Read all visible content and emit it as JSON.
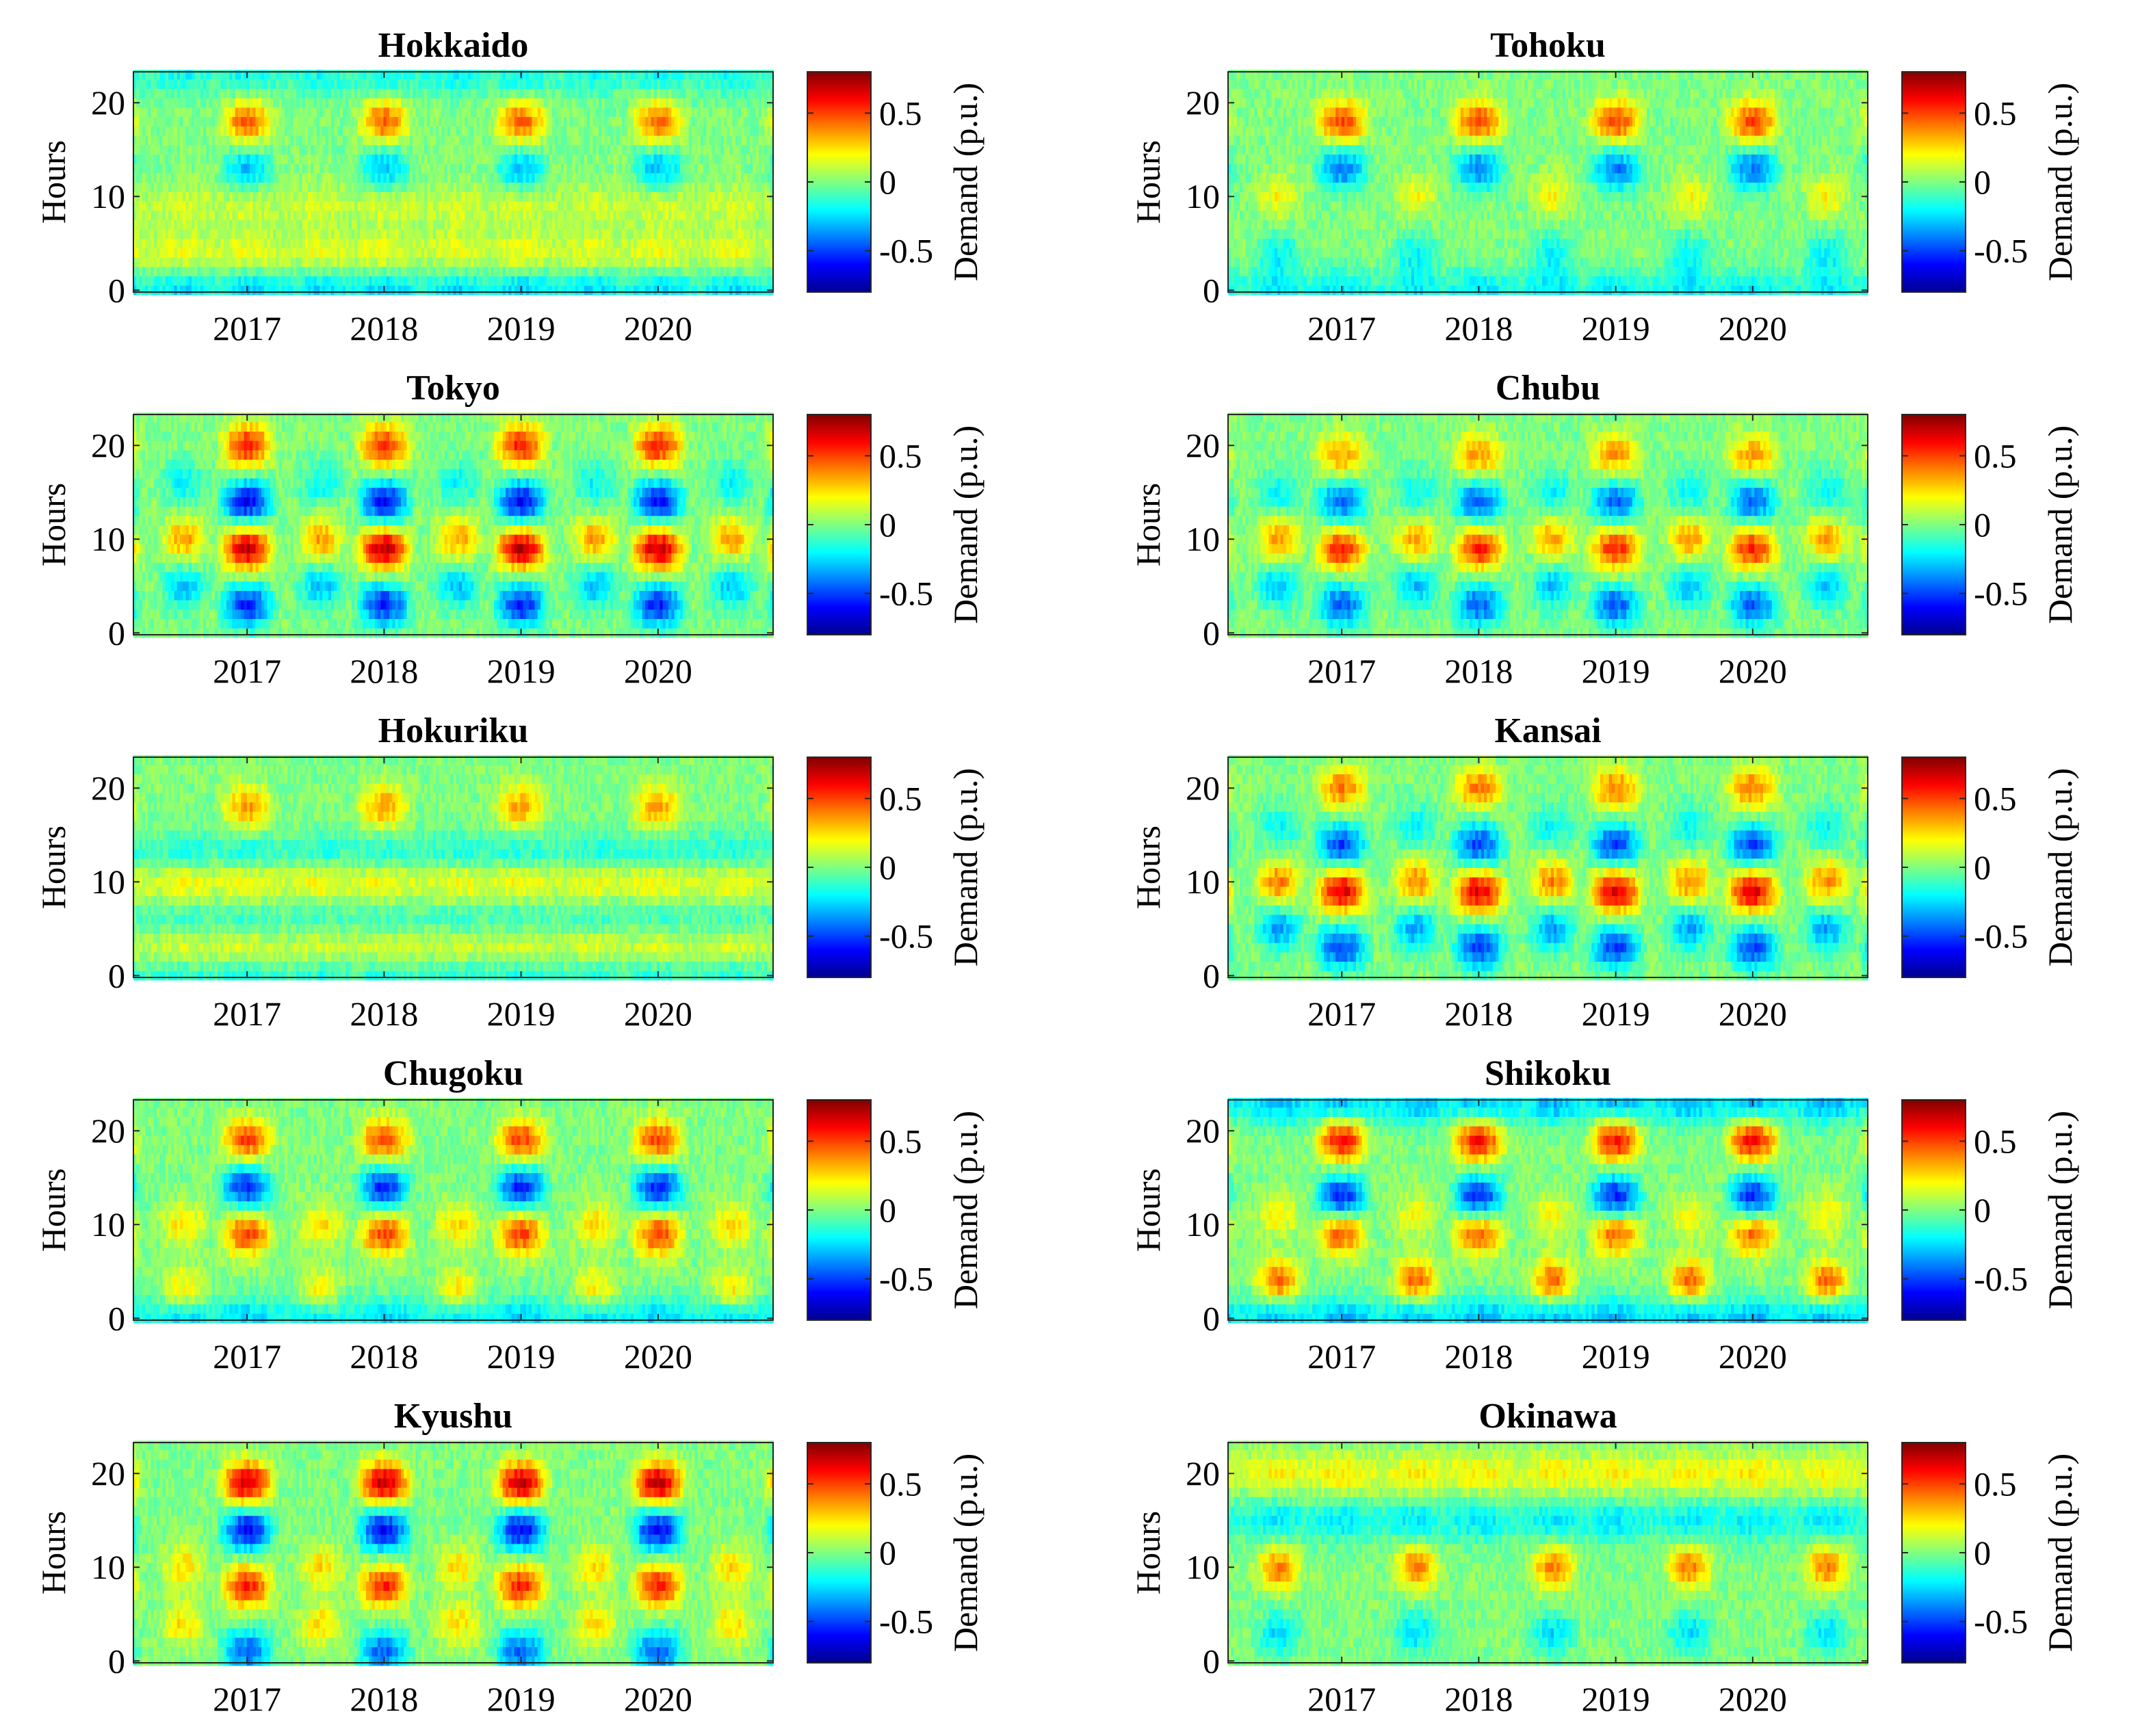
{
  "chart_data": [
    {
      "type": "heatmap",
      "title": "Hokkaido",
      "ylabel": "Hours",
      "xlabel": "",
      "ylim": [
        0,
        23
      ],
      "x_ticks": [
        "2017",
        "2018",
        "2019",
        "2020"
      ],
      "y_ticks": [
        "0",
        "10",
        "20"
      ],
      "x_range": [
        "2016-04",
        "2020-11"
      ],
      "colorbar": {
        "label": "Demand (p.u.)",
        "ticks": [
          "-0.5",
          "0",
          "0.5"
        ],
        "range": [
          -0.8,
          0.8
        ],
        "colormap": "jet"
      },
      "bands": [
        {
          "hour": 18,
          "amplitude": 0.45,
          "season": "winter"
        },
        {
          "hour": 13,
          "amplitude": -0.3,
          "season": "winter"
        },
        {
          "hour": 9,
          "amplitude": 0.15,
          "season": "all"
        },
        {
          "hour": 4,
          "amplitude": 0.2,
          "season": "all"
        },
        {
          "hour": 0,
          "amplitude": -0.3,
          "season": "all"
        },
        {
          "hour": 23,
          "amplitude": -0.2,
          "season": "all"
        }
      ]
    },
    {
      "type": "heatmap",
      "title": "Tohoku",
      "ylabel": "Hours",
      "xlabel": "",
      "ylim": [
        0,
        23
      ],
      "x_ticks": [
        "2017",
        "2018",
        "2019",
        "2020"
      ],
      "y_ticks": [
        "0",
        "10",
        "20"
      ],
      "x_range": [
        "2016-04",
        "2020-11"
      ],
      "colorbar": {
        "label": "Demand (p.u.)",
        "ticks": [
          "-0.5",
          "0",
          "0.5"
        ],
        "range": [
          -0.8,
          0.8
        ],
        "colormap": "jet"
      },
      "bands": [
        {
          "hour": 18,
          "amplitude": 0.5,
          "season": "winter"
        },
        {
          "hour": 13,
          "amplitude": -0.4,
          "season": "winter"
        },
        {
          "hour": 10,
          "amplitude": 0.2,
          "season": "summer"
        },
        {
          "hour": 4,
          "amplitude": -0.2,
          "season": "summer"
        },
        {
          "hour": 0,
          "amplitude": -0.25,
          "season": "all"
        }
      ]
    },
    {
      "type": "heatmap",
      "title": "Tokyo",
      "ylabel": "Hours",
      "xlabel": "",
      "ylim": [
        0,
        23
      ],
      "x_ticks": [
        "2017",
        "2018",
        "2019",
        "2020"
      ],
      "y_ticks": [
        "0",
        "10",
        "20"
      ],
      "x_range": [
        "2016-04",
        "2020-11"
      ],
      "colorbar": {
        "label": "Demand (p.u.)",
        "ticks": [
          "-0.5",
          "0",
          "0.5"
        ],
        "range": [
          -0.8,
          0.8
        ],
        "colormap": "jet"
      },
      "bands": [
        {
          "hour": 20,
          "amplitude": 0.55,
          "season": "winter"
        },
        {
          "hour": 14,
          "amplitude": -0.6,
          "season": "winter"
        },
        {
          "hour": 9,
          "amplitude": 0.7,
          "season": "winter"
        },
        {
          "hour": 10,
          "amplitude": 0.35,
          "season": "summer"
        },
        {
          "hour": 3,
          "amplitude": -0.55,
          "season": "winter"
        },
        {
          "hour": 5,
          "amplitude": -0.3,
          "season": "summer"
        },
        {
          "hour": 16,
          "amplitude": -0.2,
          "season": "summer"
        }
      ]
    },
    {
      "type": "heatmap",
      "title": "Chubu",
      "ylabel": "Hours",
      "xlabel": "",
      "ylim": [
        0,
        23
      ],
      "x_ticks": [
        "2017",
        "2018",
        "2019",
        "2020"
      ],
      "y_ticks": [
        "0",
        "10",
        "20"
      ],
      "x_range": [
        "2016-04",
        "2020-11"
      ],
      "colorbar": {
        "label": "Demand (p.u.)",
        "ticks": [
          "-0.5",
          "0",
          "0.5"
        ],
        "range": [
          -0.8,
          0.8
        ],
        "colormap": "jet"
      },
      "bands": [
        {
          "hour": 19,
          "amplitude": 0.35,
          "season": "winter"
        },
        {
          "hour": 14,
          "amplitude": -0.45,
          "season": "winter"
        },
        {
          "hour": 9,
          "amplitude": 0.55,
          "season": "winter"
        },
        {
          "hour": 10,
          "amplitude": 0.35,
          "season": "summer"
        },
        {
          "hour": 3,
          "amplitude": -0.45,
          "season": "winter"
        },
        {
          "hour": 5,
          "amplitude": -0.3,
          "season": "summer"
        },
        {
          "hour": 15,
          "amplitude": -0.2,
          "season": "summer"
        }
      ]
    },
    {
      "type": "heatmap",
      "title": "Hokuriku",
      "ylabel": "Hours",
      "xlabel": "",
      "ylim": [
        0,
        23
      ],
      "x_ticks": [
        "2017",
        "2018",
        "2019",
        "2020"
      ],
      "y_ticks": [
        "0",
        "10",
        "20"
      ],
      "x_range": [
        "2016-04",
        "2020-11"
      ],
      "colorbar": {
        "label": "Demand (p.u.)",
        "ticks": [
          "-0.5",
          "0",
          "0.5"
        ],
        "range": [
          -0.8,
          0.8
        ],
        "colormap": "jet"
      },
      "bands": [
        {
          "hour": 18,
          "amplitude": 0.35,
          "season": "winter"
        },
        {
          "hour": 13,
          "amplitude": -0.2,
          "season": "all"
        },
        {
          "hour": 10,
          "amplitude": 0.25,
          "season": "all"
        },
        {
          "hour": 3,
          "amplitude": 0.2,
          "season": "all"
        },
        {
          "hour": 6,
          "amplitude": -0.15,
          "season": "all"
        },
        {
          "hour": 0,
          "amplitude": -0.2,
          "season": "all"
        }
      ]
    },
    {
      "type": "heatmap",
      "title": "Kansai",
      "ylabel": "Hours",
      "xlabel": "",
      "ylim": [
        0,
        23
      ],
      "x_ticks": [
        "2017",
        "2018",
        "2019",
        "2020"
      ],
      "y_ticks": [
        "0",
        "10",
        "20"
      ],
      "x_range": [
        "2016-04",
        "2020-11"
      ],
      "colorbar": {
        "label": "Demand (p.u.)",
        "ticks": [
          "-0.5",
          "0",
          "0.5"
        ],
        "range": [
          -0.8,
          0.8
        ],
        "colormap": "jet"
      },
      "bands": [
        {
          "hour": 20,
          "amplitude": 0.4,
          "season": "winter"
        },
        {
          "hour": 14,
          "amplitude": -0.5,
          "season": "winter"
        },
        {
          "hour": 9,
          "amplitude": 0.65,
          "season": "winter"
        },
        {
          "hour": 10,
          "amplitude": 0.4,
          "season": "summer"
        },
        {
          "hour": 3,
          "amplitude": -0.5,
          "season": "winter"
        },
        {
          "hour": 5,
          "amplitude": -0.35,
          "season": "summer"
        },
        {
          "hour": 16,
          "amplitude": -0.2,
          "season": "summer"
        }
      ]
    },
    {
      "type": "heatmap",
      "title": "Chugoku",
      "ylabel": "Hours",
      "xlabel": "",
      "ylim": [
        0,
        23
      ],
      "x_ticks": [
        "2017",
        "2018",
        "2019",
        "2020"
      ],
      "y_ticks": [
        "0",
        "10",
        "20"
      ],
      "x_range": [
        "2016-04",
        "2020-11"
      ],
      "colorbar": {
        "label": "Demand (p.u.)",
        "ticks": [
          "-0.5",
          "0",
          "0.5"
        ],
        "range": [
          -0.8,
          0.8
        ],
        "colormap": "jet"
      },
      "bands": [
        {
          "hour": 19,
          "amplitude": 0.5,
          "season": "winter"
        },
        {
          "hour": 14,
          "amplitude": -0.55,
          "season": "winter"
        },
        {
          "hour": 9,
          "amplitude": 0.5,
          "season": "winter"
        },
        {
          "hour": 10,
          "amplitude": 0.25,
          "season": "summer"
        },
        {
          "hour": 3,
          "amplitude": 0.25,
          "season": "summer"
        },
        {
          "hour": 0,
          "amplitude": -0.3,
          "season": "all"
        }
      ]
    },
    {
      "type": "heatmap",
      "title": "Shikoku",
      "ylabel": "Hours",
      "xlabel": "",
      "ylim": [
        0,
        23
      ],
      "x_ticks": [
        "2017",
        "2018",
        "2019",
        "2020"
      ],
      "y_ticks": [
        "0",
        "10",
        "20"
      ],
      "x_range": [
        "2016-04",
        "2020-11"
      ],
      "colorbar": {
        "label": "Demand (p.u.)",
        "ticks": [
          "-0.5",
          "0",
          "0.5"
        ],
        "range": [
          -0.8,
          0.8
        ],
        "colormap": "jet"
      },
      "bands": [
        {
          "hour": 19,
          "amplitude": 0.6,
          "season": "winter"
        },
        {
          "hour": 13,
          "amplitude": -0.55,
          "season": "winter"
        },
        {
          "hour": 9,
          "amplitude": 0.45,
          "season": "winter"
        },
        {
          "hour": 11,
          "amplitude": 0.2,
          "season": "summer"
        },
        {
          "hour": 4,
          "amplitude": 0.45,
          "season": "summer"
        },
        {
          "hour": 23,
          "amplitude": -0.35,
          "season": "all"
        },
        {
          "hour": 0,
          "amplitude": -0.35,
          "season": "all"
        }
      ]
    },
    {
      "type": "heatmap",
      "title": "Kyushu",
      "ylabel": "Hours",
      "xlabel": "",
      "ylim": [
        0,
        23
      ],
      "x_ticks": [
        "2017",
        "2018",
        "2019",
        "2020"
      ],
      "y_ticks": [
        "0",
        "10",
        "20"
      ],
      "x_range": [
        "2016-04",
        "2020-11"
      ],
      "colorbar": {
        "label": "Demand (p.u.)",
        "ticks": [
          "-0.5",
          "0",
          "0.5"
        ],
        "range": [
          -0.8,
          0.8
        ],
        "colormap": "jet"
      },
      "bands": [
        {
          "hour": 19,
          "amplitude": 0.7,
          "season": "winter"
        },
        {
          "hour": 14,
          "amplitude": -0.6,
          "season": "winter"
        },
        {
          "hour": 8,
          "amplitude": 0.55,
          "season": "winter"
        },
        {
          "hour": 10,
          "amplitude": 0.25,
          "season": "summer"
        },
        {
          "hour": 4,
          "amplitude": 0.25,
          "season": "summer"
        },
        {
          "hour": 1,
          "amplitude": -0.45,
          "season": "winter"
        }
      ]
    },
    {
      "type": "heatmap",
      "title": "Okinawa",
      "ylabel": "Hours",
      "xlabel": "",
      "ylim": [
        0,
        23
      ],
      "x_ticks": [
        "2017",
        "2018",
        "2019",
        "2020"
      ],
      "y_ticks": [
        "0",
        "10",
        "20"
      ],
      "x_range": [
        "2016-04",
        "2020-11"
      ],
      "colorbar": {
        "label": "Demand (p.u.)",
        "ticks": [
          "-0.5",
          "0",
          "0.5"
        ],
        "range": [
          -0.8,
          0.8
        ],
        "colormap": "jet"
      },
      "bands": [
        {
          "hour": 20,
          "amplitude": 0.25,
          "season": "all"
        },
        {
          "hour": 15,
          "amplitude": -0.25,
          "season": "all"
        },
        {
          "hour": 10,
          "amplitude": 0.4,
          "season": "summer"
        },
        {
          "hour": 3,
          "amplitude": -0.25,
          "season": "summer"
        }
      ]
    }
  ]
}
